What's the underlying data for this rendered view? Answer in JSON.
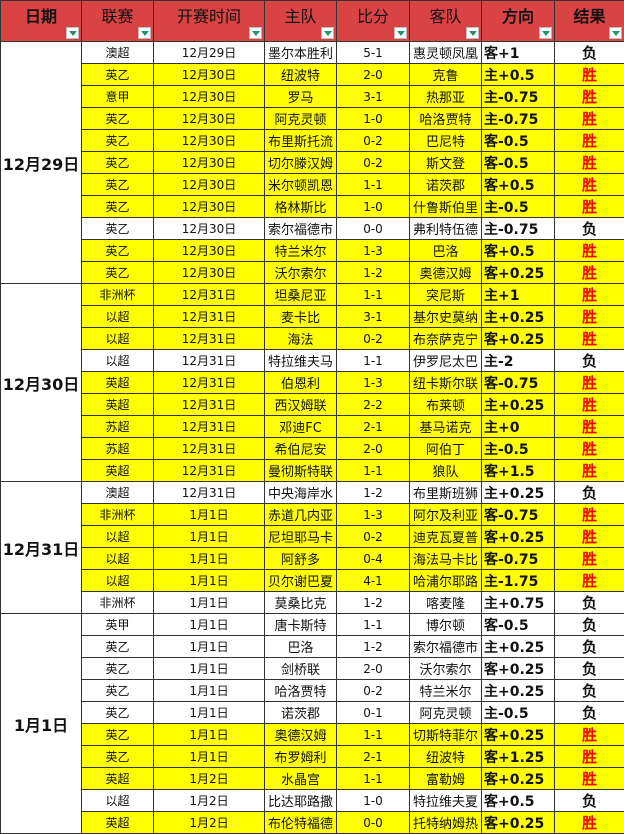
{
  "headers": [
    "日期",
    "联赛",
    "开赛时间",
    "主队",
    "比分",
    "客队",
    "方向",
    "结果"
  ],
  "colors": {
    "header": "#d94343",
    "highlight": "#ffff00",
    "win_text": "#ff0000"
  },
  "groups": [
    {
      "date": "12月29日",
      "rows": [
        [
          "澳超",
          "12月29日",
          "墨尔本胜利",
          "5-1",
          "惠灵顿凤凰",
          "客+1",
          "负"
        ],
        [
          "英乙",
          "12月30日",
          "纽波特",
          "2-0",
          "克鲁",
          "主+0.5",
          "胜"
        ],
        [
          "意甲",
          "12月30日",
          "罗马",
          "3-1",
          "热那亚",
          "主-0.75",
          "胜"
        ],
        [
          "英乙",
          "12月30日",
          "阿克灵顿",
          "1-0",
          "哈洛贾特",
          "主-0.75",
          "胜"
        ],
        [
          "英乙",
          "12月30日",
          "布里斯托流",
          "0-2",
          "巴尼特",
          "客-0.5",
          "胜"
        ],
        [
          "英乙",
          "12月30日",
          "切尔滕汉姆",
          "0-2",
          "斯文登",
          "客-0.5",
          "胜"
        ],
        [
          "英乙",
          "12月30日",
          "米尔顿凯恩",
          "1-1",
          "诺茨郡",
          "客+0.5",
          "胜"
        ],
        [
          "英乙",
          "12月30日",
          "格林斯比",
          "1-0",
          "什鲁斯伯里",
          "主-0.5",
          "胜"
        ],
        [
          "英乙",
          "12月30日",
          "索尔福德市",
          "0-0",
          "弗利特伍德",
          "主-0.75",
          "负"
        ],
        [
          "英乙",
          "12月30日",
          "特兰米尔",
          "1-3",
          "巴洛",
          "客+0.5",
          "胜"
        ],
        [
          "英乙",
          "12月30日",
          "沃尔索尔",
          "1-2",
          "奥德汉姆",
          "客+0.25",
          "胜"
        ]
      ]
    },
    {
      "date": "12月30日",
      "rows": [
        [
          "非洲杯",
          "12月31日",
          "坦桑尼亚",
          "1-1",
          "突尼斯",
          "主+1",
          "胜"
        ],
        [
          "以超",
          "12月31日",
          "麦卡比",
          "3-1",
          "基尔史莫纳",
          "主+0.25",
          "胜"
        ],
        [
          "以超",
          "12月31日",
          "海法",
          "0-2",
          "布奈萨克宁",
          "客+0.25",
          "胜"
        ],
        [
          "以超",
          "12月31日",
          "特拉维夫马",
          "1-1",
          "伊罗尼太巴",
          "主-2",
          "负"
        ],
        [
          "英超",
          "12月31日",
          "伯恩利",
          "1-3",
          "纽卡斯尔联",
          "客-0.75",
          "胜"
        ],
        [
          "英超",
          "12月31日",
          "西汉姆联",
          "2-2",
          "布莱顿",
          "主+0.25",
          "胜"
        ],
        [
          "苏超",
          "12月31日",
          "邓迪FC",
          "2-1",
          "基马诺克",
          "主+0",
          "胜"
        ],
        [
          "苏超",
          "12月31日",
          "希伯尼安",
          "2-0",
          "阿伯丁",
          "主-0.5",
          "胜"
        ],
        [
          "英超",
          "12月31日",
          "曼彻斯特联",
          "1-1",
          "狼队",
          "客+1.5",
          "胜"
        ]
      ]
    },
    {
      "date": "12月31日",
      "rows": [
        [
          "澳超",
          "12月31日",
          "中央海岸水",
          "1-2",
          "布里斯班狮",
          "主+0.25",
          "负"
        ],
        [
          "非洲杯",
          "1月1日",
          "赤道几内亚",
          "1-3",
          "阿尔及利亚",
          "客-0.75",
          "胜"
        ],
        [
          "以超",
          "1月1日",
          "尼坦耶马卡",
          "0-2",
          "迪克瓦夏普",
          "客+0.25",
          "胜"
        ],
        [
          "以超",
          "1月1日",
          "阿舒多",
          "0-4",
          "海法马卡比",
          "客-0.75",
          "胜"
        ],
        [
          "以超",
          "1月1日",
          "贝尔谢巴夏",
          "4-1",
          "哈浦尔耶路",
          "主-1.75",
          "胜"
        ],
        [
          "非洲杯",
          "1月1日",
          "莫桑比克",
          "1-2",
          "喀麦隆",
          "主+0.75",
          "负"
        ]
      ]
    },
    {
      "date": "1月1日",
      "rows": [
        [
          "英甲",
          "1月1日",
          "唐卡斯特",
          "1-1",
          "博尔顿",
          "客-0.5",
          "负"
        ],
        [
          "英乙",
          "1月1日",
          "巴洛",
          "1-2",
          "索尔福德市",
          "主+0.25",
          "负"
        ],
        [
          "英乙",
          "1月1日",
          "剑桥联",
          "2-0",
          "沃尔索尔",
          "客+0.25",
          "负"
        ],
        [
          "英乙",
          "1月1日",
          "哈洛贾特",
          "0-2",
          "特兰米尔",
          "主+0.25",
          "负"
        ],
        [
          "英乙",
          "1月1日",
          "诺茨郡",
          "0-1",
          "阿克灵顿",
          "主-0.5",
          "负"
        ],
        [
          "英乙",
          "1月1日",
          "奥德汉姆",
          "1-1",
          "切斯特菲尔",
          "客+0.25",
          "胜"
        ],
        [
          "英乙",
          "1月1日",
          "布罗姆利",
          "2-1",
          "纽波特",
          "客+1.25",
          "胜"
        ],
        [
          "英超",
          "1月2日",
          "水晶宫",
          "1-1",
          "富勒姆",
          "客+0.25",
          "胜"
        ],
        [
          "以超",
          "1月2日",
          "比达耶路撒",
          "1-0",
          "特拉维夫夏",
          "客+0.5",
          "负"
        ],
        [
          "英超",
          "1月2日",
          "布伦特福德",
          "0-0",
          "托特纳姆热",
          "客+0.25",
          "胜"
        ]
      ]
    }
  ]
}
